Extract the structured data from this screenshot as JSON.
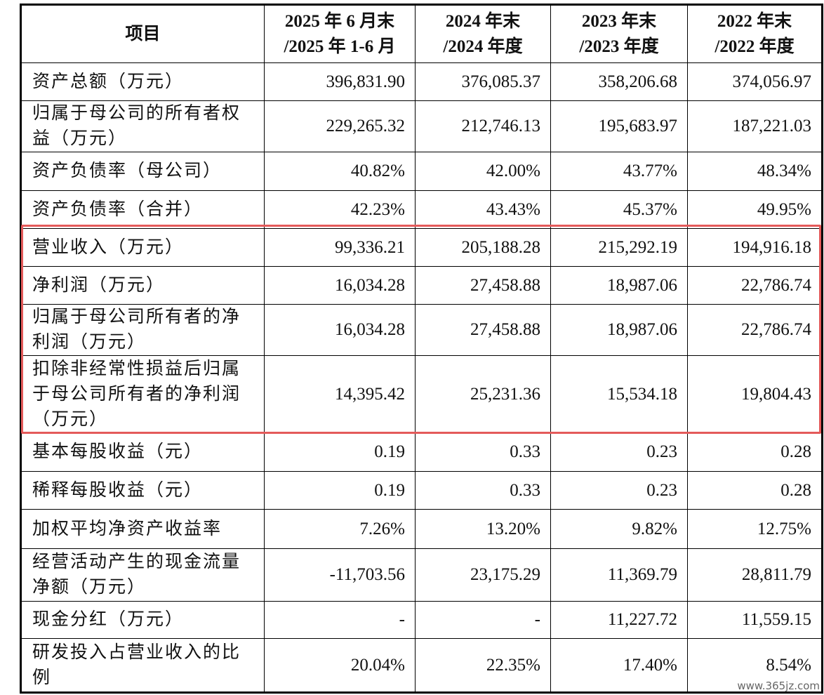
{
  "table": {
    "header": [
      [
        "项目"
      ],
      [
        "2025 年 6 月末",
        "/2025 年 1-6 月"
      ],
      [
        "2024 年末",
        "/2024 年度"
      ],
      [
        "2023 年末",
        "/2023 年度"
      ],
      [
        "2022 年末",
        "/2022 年度"
      ]
    ],
    "rows": [
      {
        "label": [
          "资产总额（万元）"
        ],
        "values": [
          "396,831.90",
          "376,085.37",
          "358,206.68",
          "374,056.97"
        ]
      },
      {
        "label": [
          "归属于母公司的所有者权",
          "益（万元）"
        ],
        "values": [
          "229,265.32",
          "212,746.13",
          "195,683.97",
          "187,221.03"
        ]
      },
      {
        "label": [
          "资产负债率（母公司）"
        ],
        "values": [
          "40.82%",
          "42.00%",
          "43.77%",
          "48.34%"
        ]
      },
      {
        "label": [
          "资产负债率（合并）"
        ],
        "values": [
          "42.23%",
          "43.43%",
          "45.37%",
          "49.95%"
        ]
      },
      {
        "label": [
          "营业收入（万元）"
        ],
        "values": [
          "99,336.21",
          "205,188.28",
          "215,292.19",
          "194,916.18"
        ]
      },
      {
        "label": [
          "净利润（万元）"
        ],
        "values": [
          "16,034.28",
          "27,458.88",
          "18,987.06",
          "22,786.74"
        ]
      },
      {
        "label": [
          "归属于母公司所有者的净",
          "利润（万元）"
        ],
        "values": [
          "16,034.28",
          "27,458.88",
          "18,987.06",
          "22,786.74"
        ]
      },
      {
        "label": [
          "扣除非经常性损益后归属",
          "于母公司所有者的净利润",
          "（万元）"
        ],
        "values": [
          "14,395.42",
          "25,231.36",
          "15,534.18",
          "19,804.43"
        ]
      },
      {
        "label": [
          "基本每股收益（元）"
        ],
        "values": [
          "0.19",
          "0.33",
          "0.23",
          "0.28"
        ]
      },
      {
        "label": [
          "稀释每股收益（元）"
        ],
        "values": [
          "0.19",
          "0.33",
          "0.23",
          "0.28"
        ]
      },
      {
        "label": [
          "加权平均净资产收益率"
        ],
        "values": [
          "7.26%",
          "13.20%",
          "9.82%",
          "12.75%"
        ]
      },
      {
        "label": [
          "经营活动产生的现金流量",
          "净额（万元）"
        ],
        "values": [
          "-11,703.56",
          "23,175.29",
          "11,369.79",
          "28,811.79"
        ]
      },
      {
        "label": [
          "现金分红（万元）"
        ],
        "values": [
          "-",
          "-",
          "11,227.72",
          "11,559.15"
        ]
      },
      {
        "label": [
          "研发投入占营业收入的比",
          "例"
        ],
        "values": [
          "20.04%",
          "22.35%",
          "17.40%",
          "8.54%"
        ]
      }
    ]
  },
  "watermark": "www.365jz.com"
}
